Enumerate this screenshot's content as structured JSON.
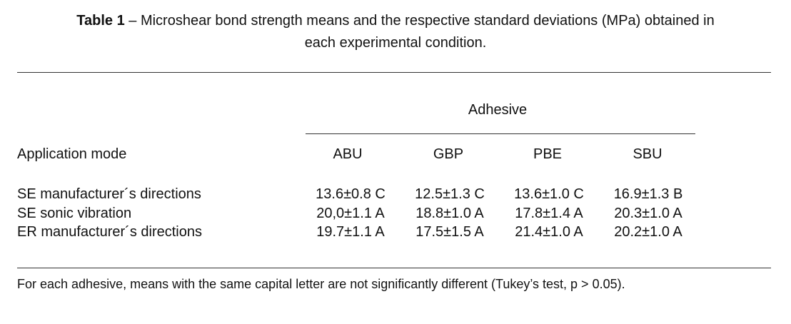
{
  "caption": {
    "label": "Table 1",
    "text": " – Microshear bond strength means and the respective standard deviations (MPa) obtained in",
    "text_line2": "each experimental condition."
  },
  "table": {
    "group_header": "Adhesive",
    "row_header": "Application mode",
    "columns": [
      "ABU",
      "GBP",
      "PBE",
      "SBU"
    ],
    "rows": [
      {
        "label": "SE manufacturer´s directions",
        "values": [
          "13.6±0.8 C",
          "12.5±1.3 C",
          "13.6±1.0 C",
          "16.9±1.3 B"
        ]
      },
      {
        "label": "SE sonic vibration",
        "values": [
          "20,0±1.1 A",
          "18.8±1.0 A",
          "17.8±1.4 A",
          "20.3±1.0 A"
        ]
      },
      {
        "label": "ER manufacturer´s directions",
        "values": [
          "19.7±1.1 A",
          "17.5±1.5 A",
          "21.4±1.0 A",
          "20.2±1.0 A"
        ]
      }
    ]
  },
  "footnote": "For each adhesive, means with the same capital letter are not significantly different (Tukey’s test, p > 0.05)."
}
